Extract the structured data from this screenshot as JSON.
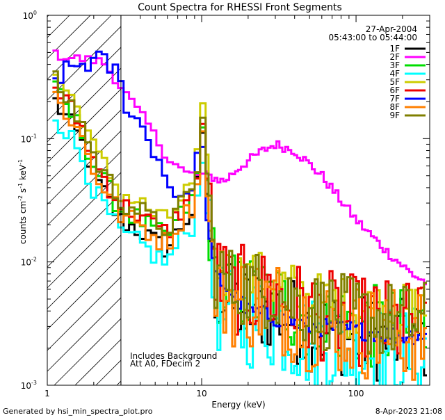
{
  "chart_data": {
    "type": "line",
    "title": "Count Spectra for RHESSI Front Segments",
    "xlabel": "Energy (keV)",
    "ylabel_parts": {
      "a": "counts cm",
      "b": "-2",
      "c": " s",
      "d": "-1",
      "e": " keV",
      "f": "-1"
    },
    "x_scale": "log",
    "y_scale": "log",
    "xlim": [
      1,
      300
    ],
    "ylim": [
      0.001,
      1
    ],
    "x_ticks": [
      {
        "v": 1,
        "label": "1"
      },
      {
        "v": 10,
        "label": "10"
      },
      {
        "v": 100,
        "label": "100"
      }
    ],
    "y_ticks": [
      {
        "v": 1,
        "base": "10",
        "exp": "0"
      },
      {
        "v": 0.1,
        "base": "10",
        "exp": "-1"
      },
      {
        "v": 0.01,
        "base": "10",
        "exp": "-2"
      },
      {
        "v": 0.001,
        "base": "10",
        "exp": "-3"
      }
    ],
    "hatched_region_kev": [
      1,
      3
    ],
    "date": "27-Apr-2004",
    "time_range": "05:43:00 to 05:44:00",
    "annotations": [
      "Includes Background",
      "Att A0, FDecim 2"
    ],
    "legend_position": "top-right",
    "series": [
      {
        "name": "1F",
        "color": "#000000"
      },
      {
        "name": "2F",
        "color": "#ff00ff"
      },
      {
        "name": "3F",
        "color": "#00dd00"
      },
      {
        "name": "4F",
        "color": "#00ffff"
      },
      {
        "name": "5F",
        "color": "#cccc00"
      },
      {
        "name": "6F",
        "color": "#ee0000"
      },
      {
        "name": "7F",
        "color": "#0000ff"
      },
      {
        "name": "8F",
        "color": "#ff7f00"
      },
      {
        "name": "9F",
        "color": "#7f7f00"
      }
    ]
  },
  "footer": {
    "left": "Generated by hsi_min_spectra_plot.pro",
    "right": "8-Apr-2023 21:08"
  }
}
